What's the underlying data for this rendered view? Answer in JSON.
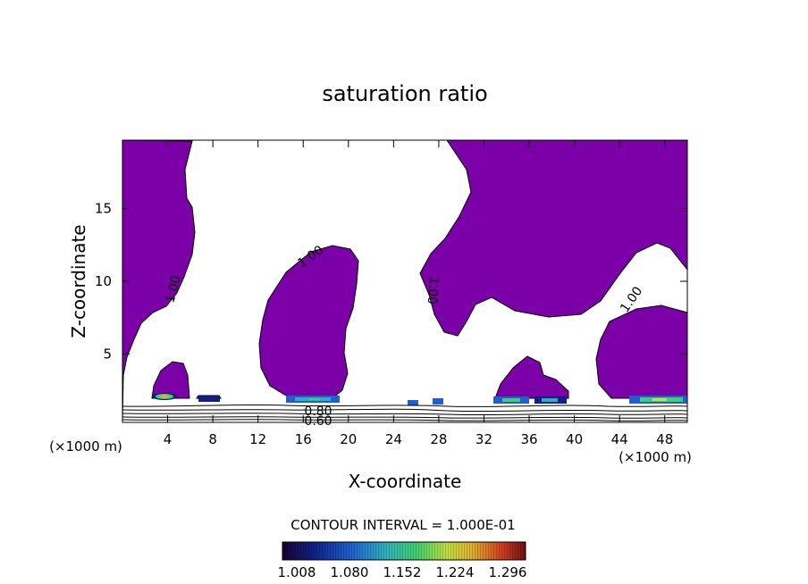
{
  "chart_data": {
    "type": "heatmap",
    "title": "saturation ratio",
    "xlabel": "X-coordinate",
    "ylabel": "Z-coordinate",
    "x_unit_label": "(×1000 m)",
    "xlim": [
      0,
      50
    ],
    "ylim": [
      0.3,
      19.7
    ],
    "x_ticks": [
      4,
      8,
      12,
      16,
      20,
      24,
      28,
      32,
      36,
      40,
      44,
      48
    ],
    "y_ticks": [
      5,
      10,
      15
    ],
    "contour_interval_text": "CONTOUR INTERVAL = 1.000E-01",
    "contour_labels": [
      {
        "text": "1.00",
        "x": 5.0,
        "z": 9.2
      },
      {
        "text": "1.00",
        "x": 17.4,
        "z": 11.4
      },
      {
        "text": "1.00",
        "x": 27.0,
        "z": 9.1
      },
      {
        "text": "1.00",
        "x": 46.2,
        "z": 8.4
      },
      {
        "text": "0.80",
        "x": 17.6,
        "z": 1.0
      },
      {
        "text": "0.60",
        "x": 17.3,
        "z": 0.4
      }
    ],
    "supersaturated_color": "#7b00a8",
    "colorbar": {
      "tick_labels": [
        "1.008",
        "1.080",
        "1.152",
        "1.224",
        "1.296"
      ],
      "colors": [
        "#1a0030",
        "#10208a",
        "#1f5fd0",
        "#2fb0c0",
        "#3fd070",
        "#c0e040",
        "#e0b030",
        "#d04020",
        "#701010"
      ]
    }
  }
}
